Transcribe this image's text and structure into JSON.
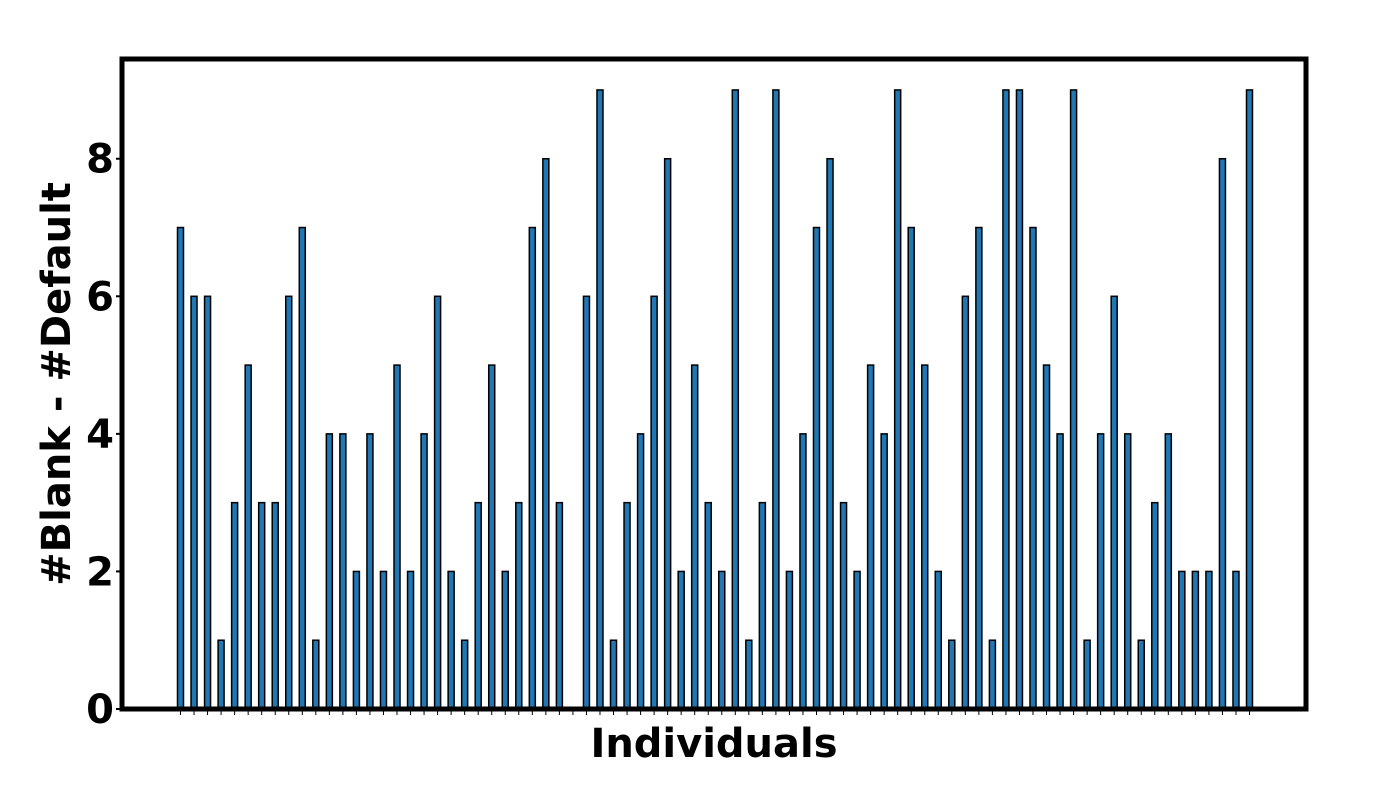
{
  "chart_data": {
    "type": "bar",
    "title": "",
    "xlabel": "Individuals",
    "ylabel": "#Blank - #Default",
    "ylim": [
      0,
      9.45
    ],
    "yticks": [
      0,
      2,
      4,
      6,
      8
    ],
    "ytick_labels": [
      "0",
      "2",
      "4",
      "6",
      "8"
    ],
    "grid": false,
    "legend": "none",
    "bar_color": "#1f77b4",
    "edge_color": "#000000",
    "values": [
      7,
      6,
      6,
      1,
      3,
      5,
      3,
      3,
      6,
      7,
      1,
      4,
      4,
      2,
      4,
      2,
      5,
      2,
      4,
      6,
      2,
      1,
      3,
      5,
      2,
      3,
      7,
      8,
      3,
      0,
      6,
      9,
      1,
      3,
      4,
      6,
      8,
      2,
      5,
      3,
      2,
      9,
      1,
      3,
      9,
      2,
      4,
      7,
      8,
      3,
      2,
      5,
      4,
      9,
      7,
      5,
      2,
      1,
      6,
      7,
      1,
      9,
      9,
      7,
      5,
      4,
      9,
      1,
      4,
      6,
      4,
      1,
      3,
      4,
      2,
      2,
      2,
      8,
      2,
      9
    ]
  }
}
